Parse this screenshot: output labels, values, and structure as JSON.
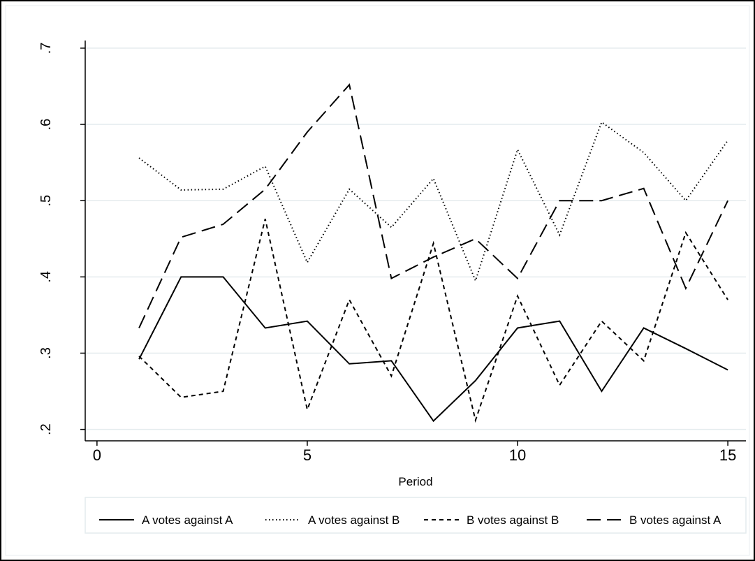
{
  "chart_data": {
    "type": "line",
    "x_label": "Period",
    "x": [
      1,
      2,
      3,
      4,
      5,
      6,
      7,
      8,
      9,
      10,
      11,
      12,
      13,
      14,
      15
    ],
    "series": [
      {
        "name": "A votes against A",
        "color": "#000000",
        "dash": "solid",
        "values": [
          0.292,
          0.4,
          0.4,
          0.333,
          0.342,
          0.286,
          0.29,
          0.211,
          0.264,
          0.333,
          0.342,
          0.25,
          0.333,
          0.306,
          0.278
        ]
      },
      {
        "name": "A votes against B",
        "color": "#000000",
        "dash": "dotted",
        "values": [
          0.556,
          0.514,
          0.515,
          0.545,
          0.419,
          0.515,
          0.465,
          0.529,
          0.395,
          0.567,
          0.455,
          0.603,
          0.563,
          0.5,
          0.579
        ]
      },
      {
        "name": "B votes against B",
        "color": "#000000",
        "dash": "short-dash",
        "values": [
          0.296,
          0.242,
          0.25,
          0.476,
          0.226,
          0.37,
          0.27,
          0.444,
          0.212,
          0.375,
          0.258,
          0.342,
          0.29,
          0.458,
          0.37
        ]
      },
      {
        "name": "B votes against A",
        "color": "#000000",
        "dash": "long-dash",
        "values": [
          0.333,
          0.452,
          0.469,
          0.515,
          0.59,
          0.652,
          0.398,
          0.426,
          0.45,
          0.398,
          0.5,
          0.5,
          0.516,
          0.385,
          0.5
        ]
      }
    ],
    "xlim": [
      -0.28,
      15.43
    ],
    "ylim": [
      0.185,
      0.71
    ],
    "xticks": [
      0,
      5,
      10,
      15
    ],
    "yticks": [
      {
        "value": 0.2,
        "label": ".2"
      },
      {
        "value": 0.3,
        "label": ".3"
      },
      {
        "value": 0.4,
        "label": ".4"
      },
      {
        "value": 0.5,
        "label": ".5"
      },
      {
        "value": 0.6,
        "label": ".6"
      },
      {
        "value": 0.7,
        "label": ".7"
      }
    ],
    "grid": true,
    "legend": "bottom"
  }
}
